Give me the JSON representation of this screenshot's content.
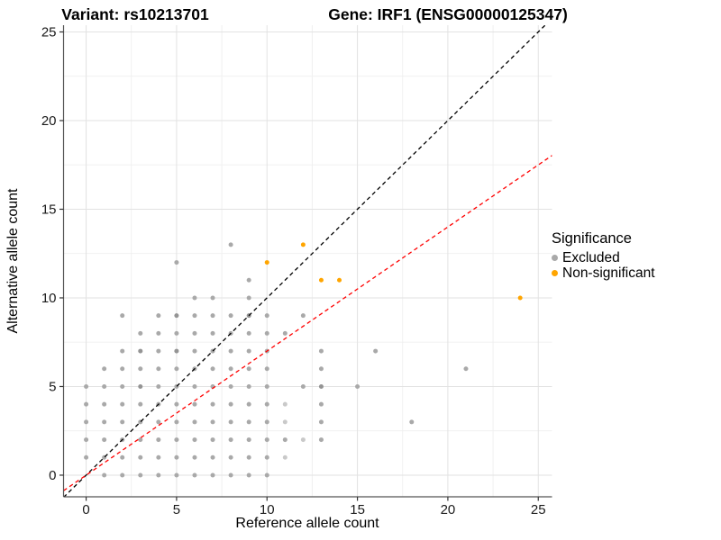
{
  "chart_data": {
    "type": "scatter",
    "title_left": "Variant: rs10213701",
    "title_right": "Gene: IRF1 (ENSG00000125347)",
    "xlabel": "Reference allele count",
    "ylabel": "Alternative allele count",
    "xlim": [
      -1.25,
      25.76
    ],
    "ylim": [
      -1.22,
      25.38
    ],
    "x_ticks": [
      0,
      5,
      10,
      15,
      20,
      25
    ],
    "y_ticks": [
      0,
      5,
      10,
      15,
      20,
      25
    ],
    "x_tick_labels": [
      "0",
      "5",
      "10",
      "15",
      "20",
      "25"
    ],
    "y_tick_labels": [
      "0",
      "5",
      "10",
      "15",
      "20",
      "25"
    ],
    "x_minor": [
      2.5,
      7.5,
      12.5,
      17.5,
      22.5
    ],
    "y_minor": [
      2.5,
      7.5,
      12.5,
      17.5,
      22.5
    ],
    "grid": {
      "major_color": "#E2E2E2",
      "minor_color": "#EFEFEF"
    },
    "axis_color": "#555555",
    "tick_label_color": "#1a1a1a",
    "legend": {
      "title": "Significance",
      "items": [
        {
          "label": "Excluded",
          "color": "#A9A9A9"
        },
        {
          "label": "Non-significant",
          "color": "#FFA500"
        }
      ]
    },
    "lines": [
      {
        "name": "identity-line",
        "slope": 1,
        "intercept": 0,
        "color": "#000000",
        "dash": "dashed"
      },
      {
        "name": "expected-ratio-line",
        "slope": 0.7,
        "intercept": 0,
        "color": "#FF0000",
        "dash": "dashed"
      }
    ],
    "series": [
      {
        "name": "Excluded",
        "color": "#A9A9A9",
        "color_light": "#C9C9C9",
        "color_dark": "#949494",
        "points": [
          [
            1,
            0
          ],
          [
            2,
            0
          ],
          [
            3,
            0
          ],
          [
            4,
            0
          ],
          [
            5,
            0
          ],
          [
            6,
            0
          ],
          [
            7,
            0
          ],
          [
            8,
            0
          ],
          [
            9,
            0
          ],
          [
            10,
            0
          ],
          [
            0,
            1
          ],
          [
            1,
            1
          ],
          [
            2,
            1
          ],
          [
            3,
            1
          ],
          [
            4,
            1
          ],
          [
            5,
            1
          ],
          [
            6,
            1
          ],
          [
            7,
            1
          ],
          [
            8,
            1
          ],
          [
            9,
            1
          ],
          [
            10,
            1
          ],
          [
            0,
            2
          ],
          [
            1,
            2
          ],
          [
            2,
            2
          ],
          [
            3,
            2
          ],
          [
            4,
            2
          ],
          [
            5,
            2
          ],
          [
            6,
            2
          ],
          [
            7,
            2
          ],
          [
            8,
            2
          ],
          [
            9,
            2
          ],
          [
            10,
            2
          ],
          [
            11,
            2
          ],
          [
            13,
            2
          ],
          [
            0,
            3
          ],
          [
            1,
            3
          ],
          [
            2,
            3
          ],
          [
            3,
            3
          ],
          [
            4,
            3
          ],
          [
            5,
            3
          ],
          [
            6,
            3
          ],
          [
            7,
            3
          ],
          [
            8,
            3
          ],
          [
            9,
            3
          ],
          [
            10,
            3
          ],
          [
            13,
            3
          ],
          [
            18,
            3
          ],
          [
            0,
            4
          ],
          [
            1,
            4
          ],
          [
            2,
            4
          ],
          [
            3,
            4
          ],
          [
            4,
            4
          ],
          [
            5,
            4
          ],
          [
            6,
            4
          ],
          [
            7,
            4
          ],
          [
            8,
            4
          ],
          [
            9,
            4
          ],
          [
            10,
            4
          ],
          [
            13,
            4
          ],
          [
            0,
            5
          ],
          [
            1,
            5
          ],
          [
            2,
            5
          ],
          [
            4,
            5
          ],
          [
            5,
            5
          ],
          [
            6,
            5
          ],
          [
            7,
            5
          ],
          [
            8,
            5
          ],
          [
            9,
            5
          ],
          [
            10,
            5
          ],
          [
            12,
            5
          ],
          [
            15,
            5
          ],
          [
            1,
            6
          ],
          [
            2,
            6
          ],
          [
            3,
            6
          ],
          [
            4,
            6
          ],
          [
            5,
            6
          ],
          [
            6,
            6
          ],
          [
            7,
            6
          ],
          [
            8,
            6
          ],
          [
            9,
            6
          ],
          [
            10,
            6
          ],
          [
            13,
            6
          ],
          [
            21,
            6
          ],
          [
            2,
            7
          ],
          [
            4,
            7
          ],
          [
            6,
            7
          ],
          [
            7,
            7
          ],
          [
            8,
            7
          ],
          [
            9,
            7
          ],
          [
            10,
            7
          ],
          [
            13,
            7
          ],
          [
            16,
            7
          ],
          [
            3,
            8
          ],
          [
            4,
            8
          ],
          [
            5,
            8
          ],
          [
            6,
            8
          ],
          [
            7,
            8
          ],
          [
            8,
            8
          ],
          [
            9,
            8
          ],
          [
            10,
            8
          ],
          [
            11,
            8
          ],
          [
            2,
            9
          ],
          [
            4,
            9
          ],
          [
            6,
            9
          ],
          [
            7,
            9
          ],
          [
            8,
            9
          ],
          [
            10,
            9
          ],
          [
            12,
            9
          ],
          [
            6,
            10
          ],
          [
            7,
            10
          ],
          [
            9,
            10
          ],
          [
            9,
            11
          ],
          [
            5,
            12
          ],
          [
            8,
            13
          ]
        ],
        "points_light": [
          [
            11,
            1
          ],
          [
            12,
            2
          ],
          [
            11,
            3
          ],
          [
            11,
            4
          ]
        ],
        "points_dark": [
          [
            3,
            5
          ],
          [
            13,
            5
          ],
          [
            3,
            7
          ],
          [
            5,
            7
          ],
          [
            5,
            9
          ],
          [
            9,
            9
          ]
        ]
      },
      {
        "name": "Non-significant",
        "color": "#FFA500",
        "points": [
          [
            10,
            12
          ],
          [
            12,
            13
          ],
          [
            13,
            11
          ],
          [
            14,
            11
          ],
          [
            24,
            10
          ]
        ]
      }
    ]
  }
}
